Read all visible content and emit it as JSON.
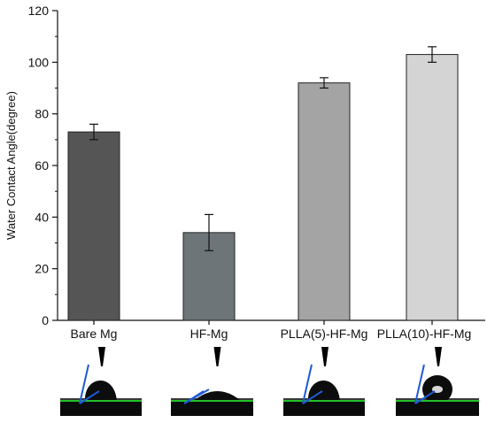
{
  "chart_data": {
    "type": "bar",
    "categories": [
      "Bare Mg",
      "HF-Mg",
      "PLLA(5)-HF-Mg",
      "PLLA(10)-HF-Mg"
    ],
    "values": [
      73,
      34,
      92,
      103
    ],
    "errors": [
      3,
      7,
      2,
      3
    ],
    "colors": [
      "#555555",
      "#6e7579",
      "#a4a4a4",
      "#d4d4d4"
    ],
    "ylabel": "Water Contact Angle(degree)",
    "xlabel": "",
    "title": "",
    "ylim": [
      0,
      120
    ],
    "yticks": [
      "0",
      "20",
      "40",
      "60",
      "80",
      "100",
      "120"
    ],
    "grid": false
  },
  "droplet_images": [
    {
      "category": "Bare Mg",
      "shape": "droplet-high"
    },
    {
      "category": "HF-Mg",
      "shape": "droplet-flat"
    },
    {
      "category": "PLLA(5)-HF-Mg",
      "shape": "droplet-high"
    },
    {
      "category": "PLLA(10)-HF-Mg",
      "shape": "droplet-ball"
    }
  ]
}
